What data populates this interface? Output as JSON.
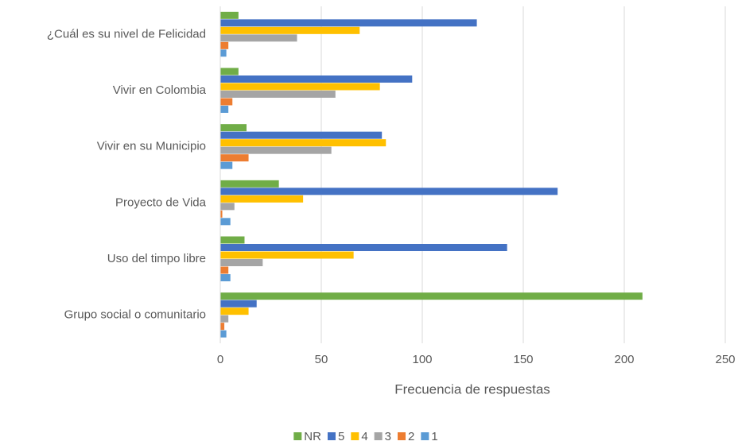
{
  "chart_data": {
    "type": "hbar",
    "x_label": "Frecuencia de respuestas",
    "categories": [
      "¿Cuál es su nivel de Felicidad",
      "Vivir en Colombia",
      "Vivir en su Municipio",
      "Proyecto de Vida",
      "Uso del timpo libre",
      "Grupo social o comunitario"
    ],
    "series": [
      {
        "name": "NR",
        "color": "#70ad47",
        "values": [
          9,
          9,
          13,
          29,
          12,
          209
        ]
      },
      {
        "name": "5",
        "color": "#4472c4",
        "values": [
          127,
          95,
          80,
          167,
          142,
          18
        ]
      },
      {
        "name": "4",
        "color": "#ffc000",
        "values": [
          69,
          79,
          82,
          41,
          66,
          14
        ]
      },
      {
        "name": "3",
        "color": "#a5a5a5",
        "values": [
          38,
          57,
          55,
          7,
          21,
          4
        ]
      },
      {
        "name": "2",
        "color": "#ed7d31",
        "values": [
          4,
          6,
          14,
          1,
          4,
          2
        ]
      },
      {
        "name": "1",
        "color": "#5b9bd5",
        "values": [
          3,
          4,
          6,
          5,
          5,
          3
        ]
      }
    ],
    "xlim": [
      0,
      250
    ],
    "xticks": [
      0,
      50,
      100,
      150,
      200,
      250
    ],
    "grid": true,
    "legend": "bottom"
  }
}
